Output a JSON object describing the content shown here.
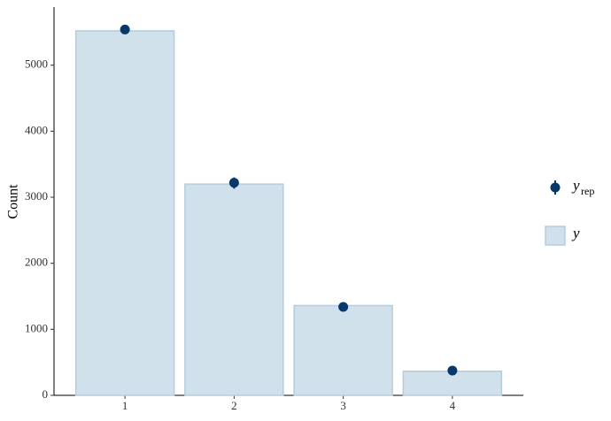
{
  "chart_data": {
    "type": "bar",
    "ylabel": "Count",
    "categories": [
      "1",
      "2",
      "3",
      "4"
    ],
    "ylim": [
      0,
      5880
    ],
    "yticks": [
      0,
      1000,
      2000,
      3000,
      4000,
      5000
    ],
    "series": [
      {
        "name": "y",
        "kind": "bar",
        "color": "#d1e1ec",
        "edge_color": "#b3cde0",
        "values": [
          5520,
          3200,
          1360,
          365
        ]
      },
      {
        "name": "y",
        "name_sub": "rep",
        "kind": "point",
        "color": "#03396c",
        "values": [
          5540,
          3220,
          1340,
          375
        ],
        "lower": [
          5480,
          3130,
          1300,
          345
        ],
        "upper": [
          5600,
          3300,
          1380,
          405
        ]
      }
    ]
  }
}
